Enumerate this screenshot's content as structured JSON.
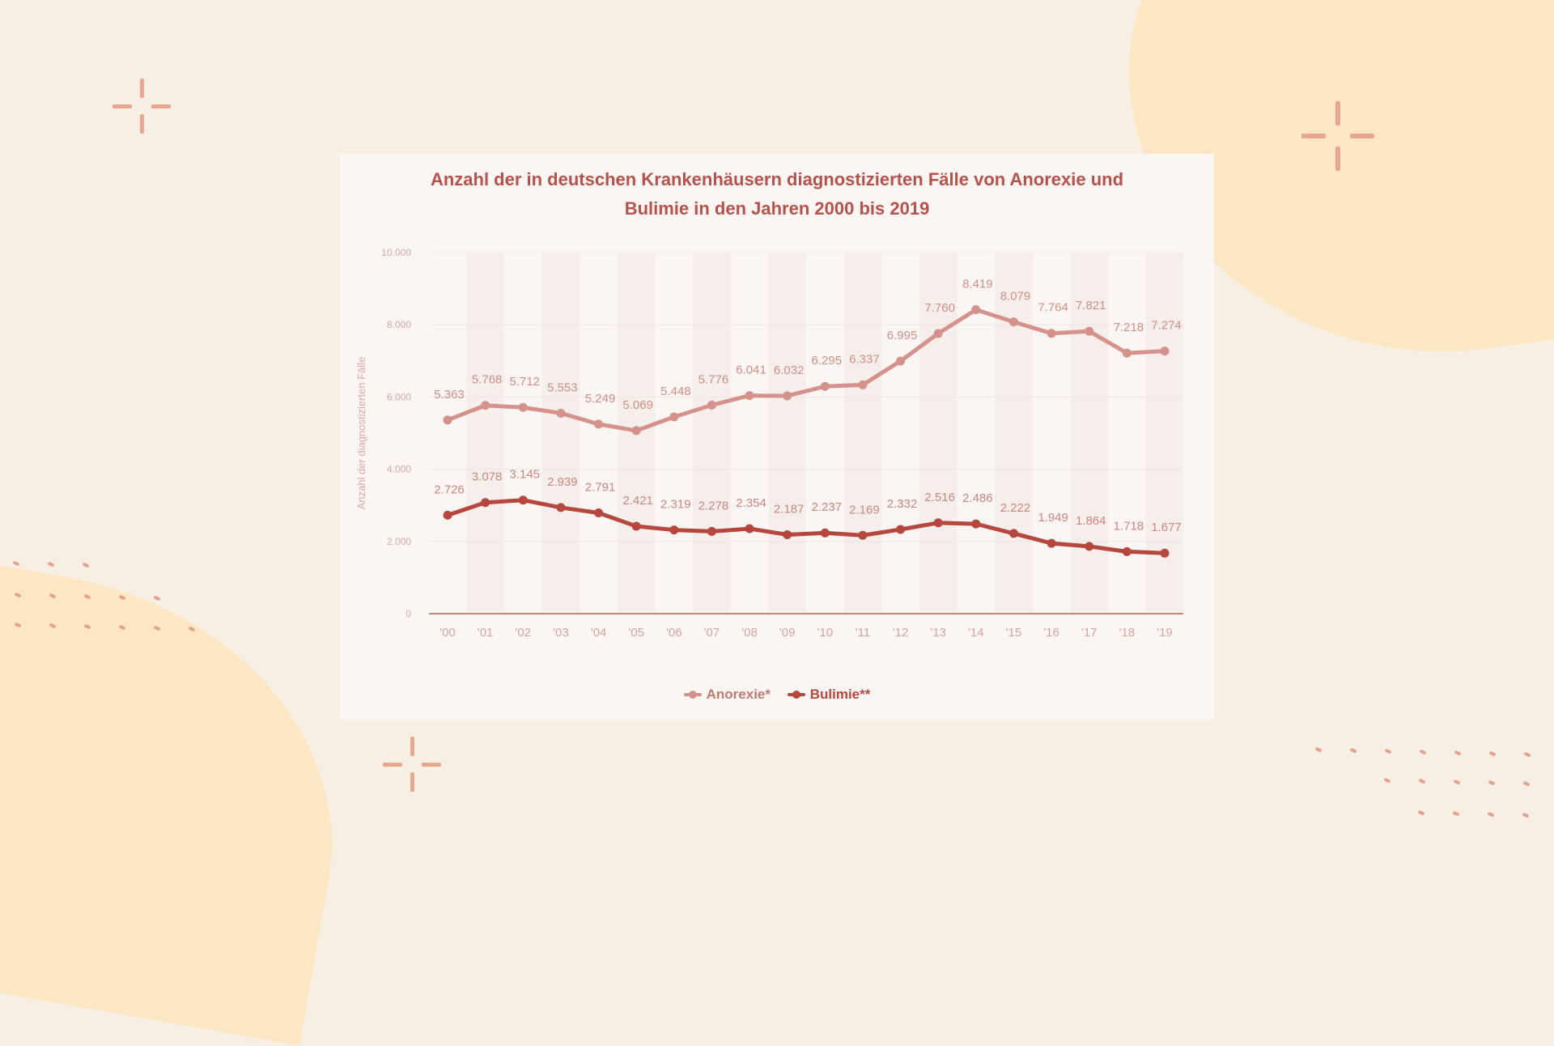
{
  "colors": {
    "background": "#f7efe3",
    "anorexie": "#d4928b",
    "bulimie": "#b5473f",
    "title": "#b5524a"
  },
  "chart_data": {
    "type": "line",
    "title": "Anzahl der in deutschen Krankenhäusern diagnostizierten Fälle von Anorexie und Bulimie in den Jahren 2000 bis 2019",
    "title_lines": [
      "Anzahl der in deutschen Krankenhäusern diagnostizierten Fälle von Anorexie und",
      "Bulimie in den Jahren 2000 bis 2019"
    ],
    "xlabel": "",
    "ylabel": "Anzahl der diagnostizierten Fälle",
    "categories": [
      "'00",
      "'01",
      "'02",
      "'03",
      "'04",
      "'05",
      "'06",
      "'07",
      "'08",
      "'09",
      "'10",
      "'11",
      "'12",
      "'13",
      "'14",
      "'15",
      "'16",
      "'17",
      "'18",
      "'19"
    ],
    "ylim": [
      0,
      10000
    ],
    "yticks": [
      0,
      2000,
      4000,
      6000,
      8000,
      10000
    ],
    "ytick_labels": [
      "0",
      "2.000",
      "4.000",
      "6.000",
      "8.000",
      "10.000"
    ],
    "grid": true,
    "legend": "bottom",
    "series": [
      {
        "name": "Anorexie*",
        "color": "#d4928b",
        "values": [
          5363,
          5768,
          5712,
          5553,
          5249,
          5069,
          5448,
          5776,
          6041,
          6032,
          6295,
          6337,
          6995,
          7760,
          8419,
          8079,
          7764,
          7821,
          7218,
          7274
        ],
        "labels": [
          "5.363",
          "5.768",
          "5.712",
          "5.553",
          "5.249",
          "5.069",
          "5.448",
          "5.776",
          "6.041",
          "6.032",
          "6.295",
          "6.337",
          "6.995",
          "7.760",
          "8.419",
          "8.079",
          "7.764",
          "7.821",
          "7.218",
          "7.274"
        ]
      },
      {
        "name": "Bulimie**",
        "color": "#b5473f",
        "values": [
          2726,
          3078,
          3145,
          2939,
          2791,
          2421,
          2319,
          2278,
          2354,
          2187,
          2237,
          2169,
          2332,
          2516,
          2486,
          2222,
          1949,
          1864,
          1718,
          1677
        ],
        "labels": [
          "2.726",
          "3.078",
          "3.145",
          "2.939",
          "2.791",
          "2.421",
          "2.319",
          "2.278",
          "2.354",
          "2.187",
          "2.237",
          "2.169",
          "2.332",
          "2.516",
          "2.486",
          "2.222",
          "1.949",
          "1.864",
          "1.718",
          "1.677"
        ]
      }
    ]
  }
}
